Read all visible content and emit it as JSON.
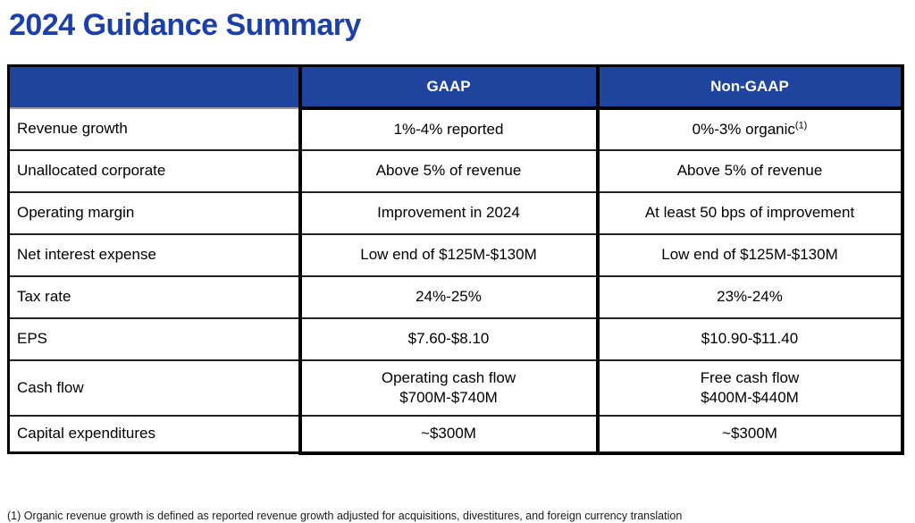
{
  "title": "2024 Guidance Summary",
  "colors": {
    "header_blue": "#1e449e",
    "title_blue": "#1c3fa8",
    "border_black": "#000000"
  },
  "table": {
    "headers": {
      "label_col": "",
      "gaap": "GAAP",
      "non_gaap": "Non-GAAP"
    },
    "rows": [
      {
        "label": "Revenue growth",
        "gaap": "1%-4% reported",
        "non_gaap": "0%-3% organic",
        "non_gaap_sup": "(1)"
      },
      {
        "label": "Unallocated corporate",
        "gaap": "Above 5% of revenue",
        "non_gaap": "Above 5% of revenue"
      },
      {
        "label": "Operating margin",
        "gaap": "Improvement in 2024",
        "non_gaap": "At least 50 bps of improvement"
      },
      {
        "label": "Net interest expense",
        "gaap": "Low end of $125M-$130M",
        "non_gaap": "Low end of $125M-$130M"
      },
      {
        "label": "Tax rate",
        "gaap": "24%-25%",
        "non_gaap": "23%-24%"
      },
      {
        "label": "EPS",
        "gaap": "$7.60-$8.10",
        "non_gaap": "$10.90-$11.40"
      },
      {
        "label": "Cash flow",
        "gaap": "Operating cash flow\n$700M-$740M",
        "non_gaap": "Free cash flow\n$400M-$440M"
      },
      {
        "label": "Capital expenditures",
        "gaap": "~$300M",
        "non_gaap": "~$300M"
      }
    ]
  },
  "footnote": "(1) Organic revenue growth is defined as reported revenue growth adjusted for acquisitions, divestitures, and foreign currency translation"
}
